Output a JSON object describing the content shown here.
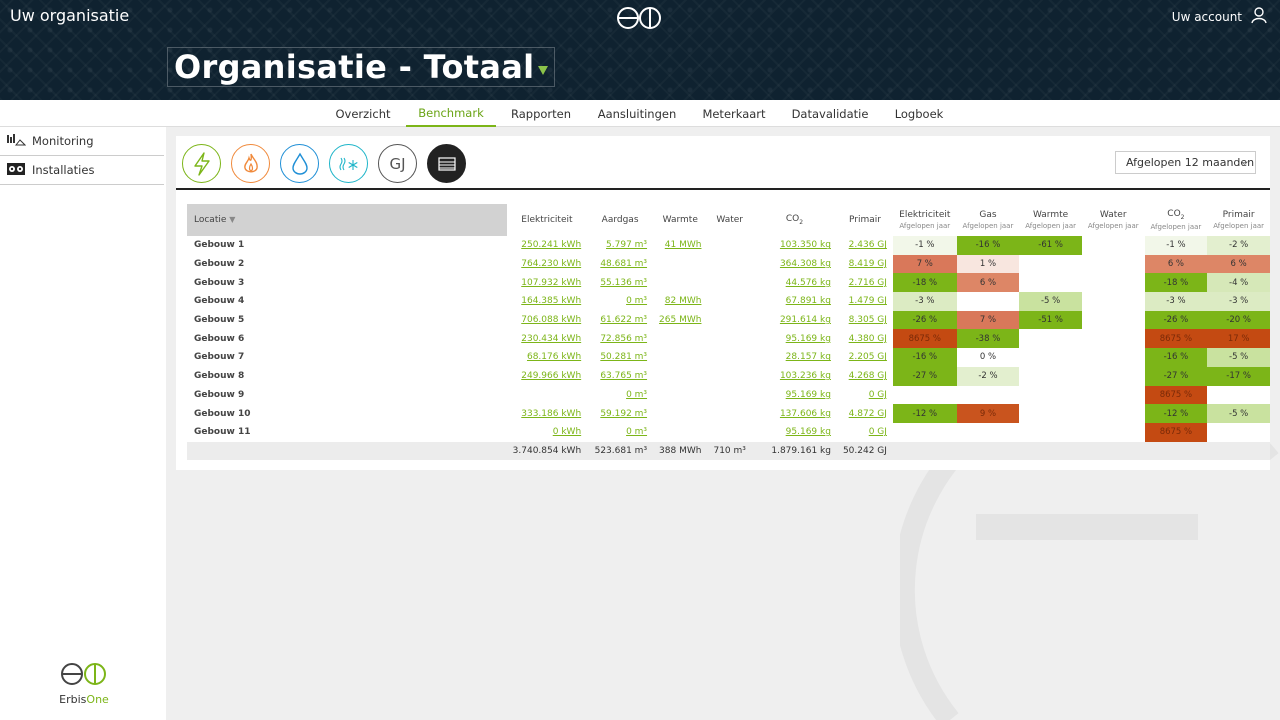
{
  "header": {
    "org_name": "Uw organisatie",
    "account_label": "Uw account",
    "page_title": "Organisatie - Totaal"
  },
  "tabs": [
    {
      "label": "Overzicht",
      "active": false
    },
    {
      "label": "Benchmark",
      "active": true
    },
    {
      "label": "Rapporten",
      "active": false
    },
    {
      "label": "Aansluitingen",
      "active": false
    },
    {
      "label": "Meterkaart",
      "active": false
    },
    {
      "label": "Datavalidatie",
      "active": false
    },
    {
      "label": "Logboek",
      "active": false
    }
  ],
  "sidebar": {
    "items": [
      {
        "label": "Monitoring",
        "icon": "monitoring-icon"
      },
      {
        "label": "Installaties",
        "icon": "installations-icon"
      }
    ],
    "logo_text_a": "Erbis",
    "logo_text_b": "One"
  },
  "toolbar": {
    "buttons": [
      {
        "name": "electricity",
        "icon": "lightning-icon",
        "color": "#7cb518"
      },
      {
        "name": "gas",
        "icon": "flame-icon",
        "color": "#f08a3c"
      },
      {
        "name": "water",
        "icon": "water-drop-icon",
        "color": "#1f8fd6"
      },
      {
        "name": "heat",
        "icon": "heat-cold-icon",
        "color": "#1eb5c9"
      },
      {
        "name": "primary",
        "icon": "gj-icon",
        "label": "GJ",
        "color": "#555555"
      },
      {
        "name": "table",
        "icon": "table-icon",
        "color": "#222222"
      }
    ],
    "period": "Afgelopen 12 maanden"
  },
  "table": {
    "headers": {
      "location": "Locatie",
      "elec": "Elektriciteit",
      "gas": "Aardgas",
      "heat": "Warmte",
      "water": "Water",
      "co2": "CO",
      "co2_sub": "2",
      "primary": "Primair",
      "b_elec": "Elektriciteit",
      "b_gas": "Gas",
      "b_heat": "Warmte",
      "b_water": "Water",
      "b_co2": "CO",
      "b_primary": "Primair",
      "prev_year": "Afgelopen jaar"
    },
    "rows": [
      {
        "name": "Gebouw 1",
        "elec": "250.241 kWh",
        "gas": "5.797 m³",
        "heat": "41 MWh",
        "water": "",
        "co2": "103.350 kg",
        "primary": "2.436 GJ",
        "b_elec": "-1 %",
        "b_gas": "-16 %",
        "b_heat": "-61 %",
        "b_water": "",
        "b_co2": "-1 %",
        "b_primary": "-2 %",
        "c_elec": "#f2f7e9",
        "c_gas": "#7cb518",
        "c_heat": "#7cb518",
        "c_water": "",
        "c_co2": "#f2f7e9",
        "c_primary": "#e3efcf"
      },
      {
        "name": "Gebouw 2",
        "elec": "764.230 kWh",
        "gas": "48.681 m³",
        "heat": "",
        "water": "",
        "co2": "364.308 kg",
        "primary": "8.419 GJ",
        "b_elec": "7 %",
        "b_gas": "1 %",
        "b_heat": "",
        "b_water": "",
        "b_co2": "6 %",
        "b_primary": "6 %",
        "c_elec": "#d9785a",
        "c_gas": "#f8e6df",
        "c_heat": "",
        "c_water": "",
        "c_co2": "#dd8666",
        "c_primary": "#dd8666"
      },
      {
        "name": "Gebouw 3",
        "elec": "107.932 kWh",
        "gas": "55.136 m³",
        "heat": "",
        "water": "",
        "co2": "44.576 kg",
        "primary": "2.716 GJ",
        "b_elec": "-18 %",
        "b_gas": "6 %",
        "b_heat": "",
        "b_water": "",
        "b_co2": "-18 %",
        "b_primary": "-4 %",
        "c_elec": "#7cb518",
        "c_gas": "#dd8666",
        "c_heat": "",
        "c_water": "",
        "c_co2": "#7cb518",
        "c_primary": "#d6e8b8"
      },
      {
        "name": "Gebouw 4",
        "elec": "164.385 kWh",
        "gas": "0 m³",
        "heat": "82 MWh",
        "water": "",
        "co2": "67.891 kg",
        "primary": "1.479 GJ",
        "b_elec": "-3 %",
        "b_gas": "",
        "b_heat": "-5 %",
        "b_water": "",
        "b_co2": "-3 %",
        "b_primary": "-3 %",
        "c_elec": "#dcebc3",
        "c_gas": "",
        "c_heat": "#c9e29f",
        "c_water": "",
        "c_co2": "#dcebc3",
        "c_primary": "#dcebc3"
      },
      {
        "name": "Gebouw 5",
        "elec": "706.088 kWh",
        "gas": "61.622 m³",
        "heat": "265 MWh",
        "water": "",
        "co2": "291.614 kg",
        "primary": "8.305 GJ",
        "b_elec": "-26 %",
        "b_gas": "7 %",
        "b_heat": "-51 %",
        "b_water": "",
        "b_co2": "-26 %",
        "b_primary": "-20 %",
        "c_elec": "#7cb518",
        "c_gas": "#d9785a",
        "c_heat": "#7cb518",
        "c_water": "",
        "c_co2": "#7cb518",
        "c_primary": "#7cb518"
      },
      {
        "name": "Gebouw 6",
        "elec": "230.434 kWh",
        "gas": "72.856 m³",
        "heat": "",
        "water": "",
        "co2": "95.169 kg",
        "primary": "4.380 GJ",
        "b_elec": "8675 %",
        "b_gas": "-38 %",
        "b_heat": "",
        "b_water": "",
        "b_co2": "8675 %",
        "b_primary": "17 %",
        "c_elec": "#c44a12",
        "c_gas": "#7cb518",
        "c_heat": "",
        "c_water": "",
        "c_co2": "#c44a12",
        "c_primary": "#c44a12"
      },
      {
        "name": "Gebouw 7",
        "elec": "68.176 kWh",
        "gas": "50.281 m³",
        "heat": "",
        "water": "",
        "co2": "28.157 kg",
        "primary": "2.205 GJ",
        "b_elec": "-16 %",
        "b_gas": "0 %",
        "b_heat": "",
        "b_water": "",
        "b_co2": "-16 %",
        "b_primary": "-5 %",
        "c_elec": "#7cb518",
        "c_gas": "#ffffff",
        "c_heat": "",
        "c_water": "",
        "c_co2": "#7cb518",
        "c_primary": "#c9e29f"
      },
      {
        "name": "Gebouw 8",
        "elec": "249.966 kWh",
        "gas": "63.765 m³",
        "heat": "",
        "water": "",
        "co2": "103.236 kg",
        "primary": "4.268 GJ",
        "b_elec": "-27 %",
        "b_gas": "-2 %",
        "b_heat": "",
        "b_water": "",
        "b_co2": "-27 %",
        "b_primary": "-17 %",
        "c_elec": "#7cb518",
        "c_gas": "#e3efcf",
        "c_heat": "",
        "c_water": "",
        "c_co2": "#7cb518",
        "c_primary": "#7cb518"
      },
      {
        "name": "Gebouw 9",
        "elec": "",
        "gas": "0 m³",
        "heat": "",
        "water": "",
        "co2": "95.169 kg",
        "primary": "0 GJ",
        "b_elec": "",
        "b_gas": "",
        "b_heat": "",
        "b_water": "",
        "b_co2": "8675 %",
        "b_primary": "",
        "c_elec": "",
        "c_gas": "",
        "c_heat": "",
        "c_water": "",
        "c_co2": "#c44a12",
        "c_primary": ""
      },
      {
        "name": "Gebouw 10",
        "elec": "333.186 kWh",
        "gas": "59.192 m³",
        "heat": "",
        "water": "",
        "co2": "137.606 kg",
        "primary": "4.872 GJ",
        "b_elec": "-12 %",
        "b_gas": "9 %",
        "b_heat": "",
        "b_water": "",
        "b_co2": "-12 %",
        "b_primary": "-5 %",
        "c_elec": "#7cb518",
        "c_gas": "#c9541e",
        "c_heat": "",
        "c_water": "",
        "c_co2": "#7cb518",
        "c_primary": "#c9e29f"
      },
      {
        "name": "Gebouw 11",
        "elec": "0 kWh",
        "gas": "0 m³",
        "heat": "",
        "water": "",
        "co2": "95.169 kg",
        "primary": "0 GJ",
        "b_elec": "",
        "b_gas": "",
        "b_heat": "",
        "b_water": "",
        "b_co2": "8675 %",
        "b_primary": "",
        "c_elec": "",
        "c_gas": "",
        "c_heat": "",
        "c_water": "",
        "c_co2": "#c44a12",
        "c_primary": ""
      }
    ],
    "totals": {
      "elec": "3.740.854 kWh",
      "gas": "523.681 m³",
      "heat": "388 MWh",
      "water": "710 m³",
      "co2": "1.879.161 kg",
      "primary": "50.242 GJ"
    }
  }
}
